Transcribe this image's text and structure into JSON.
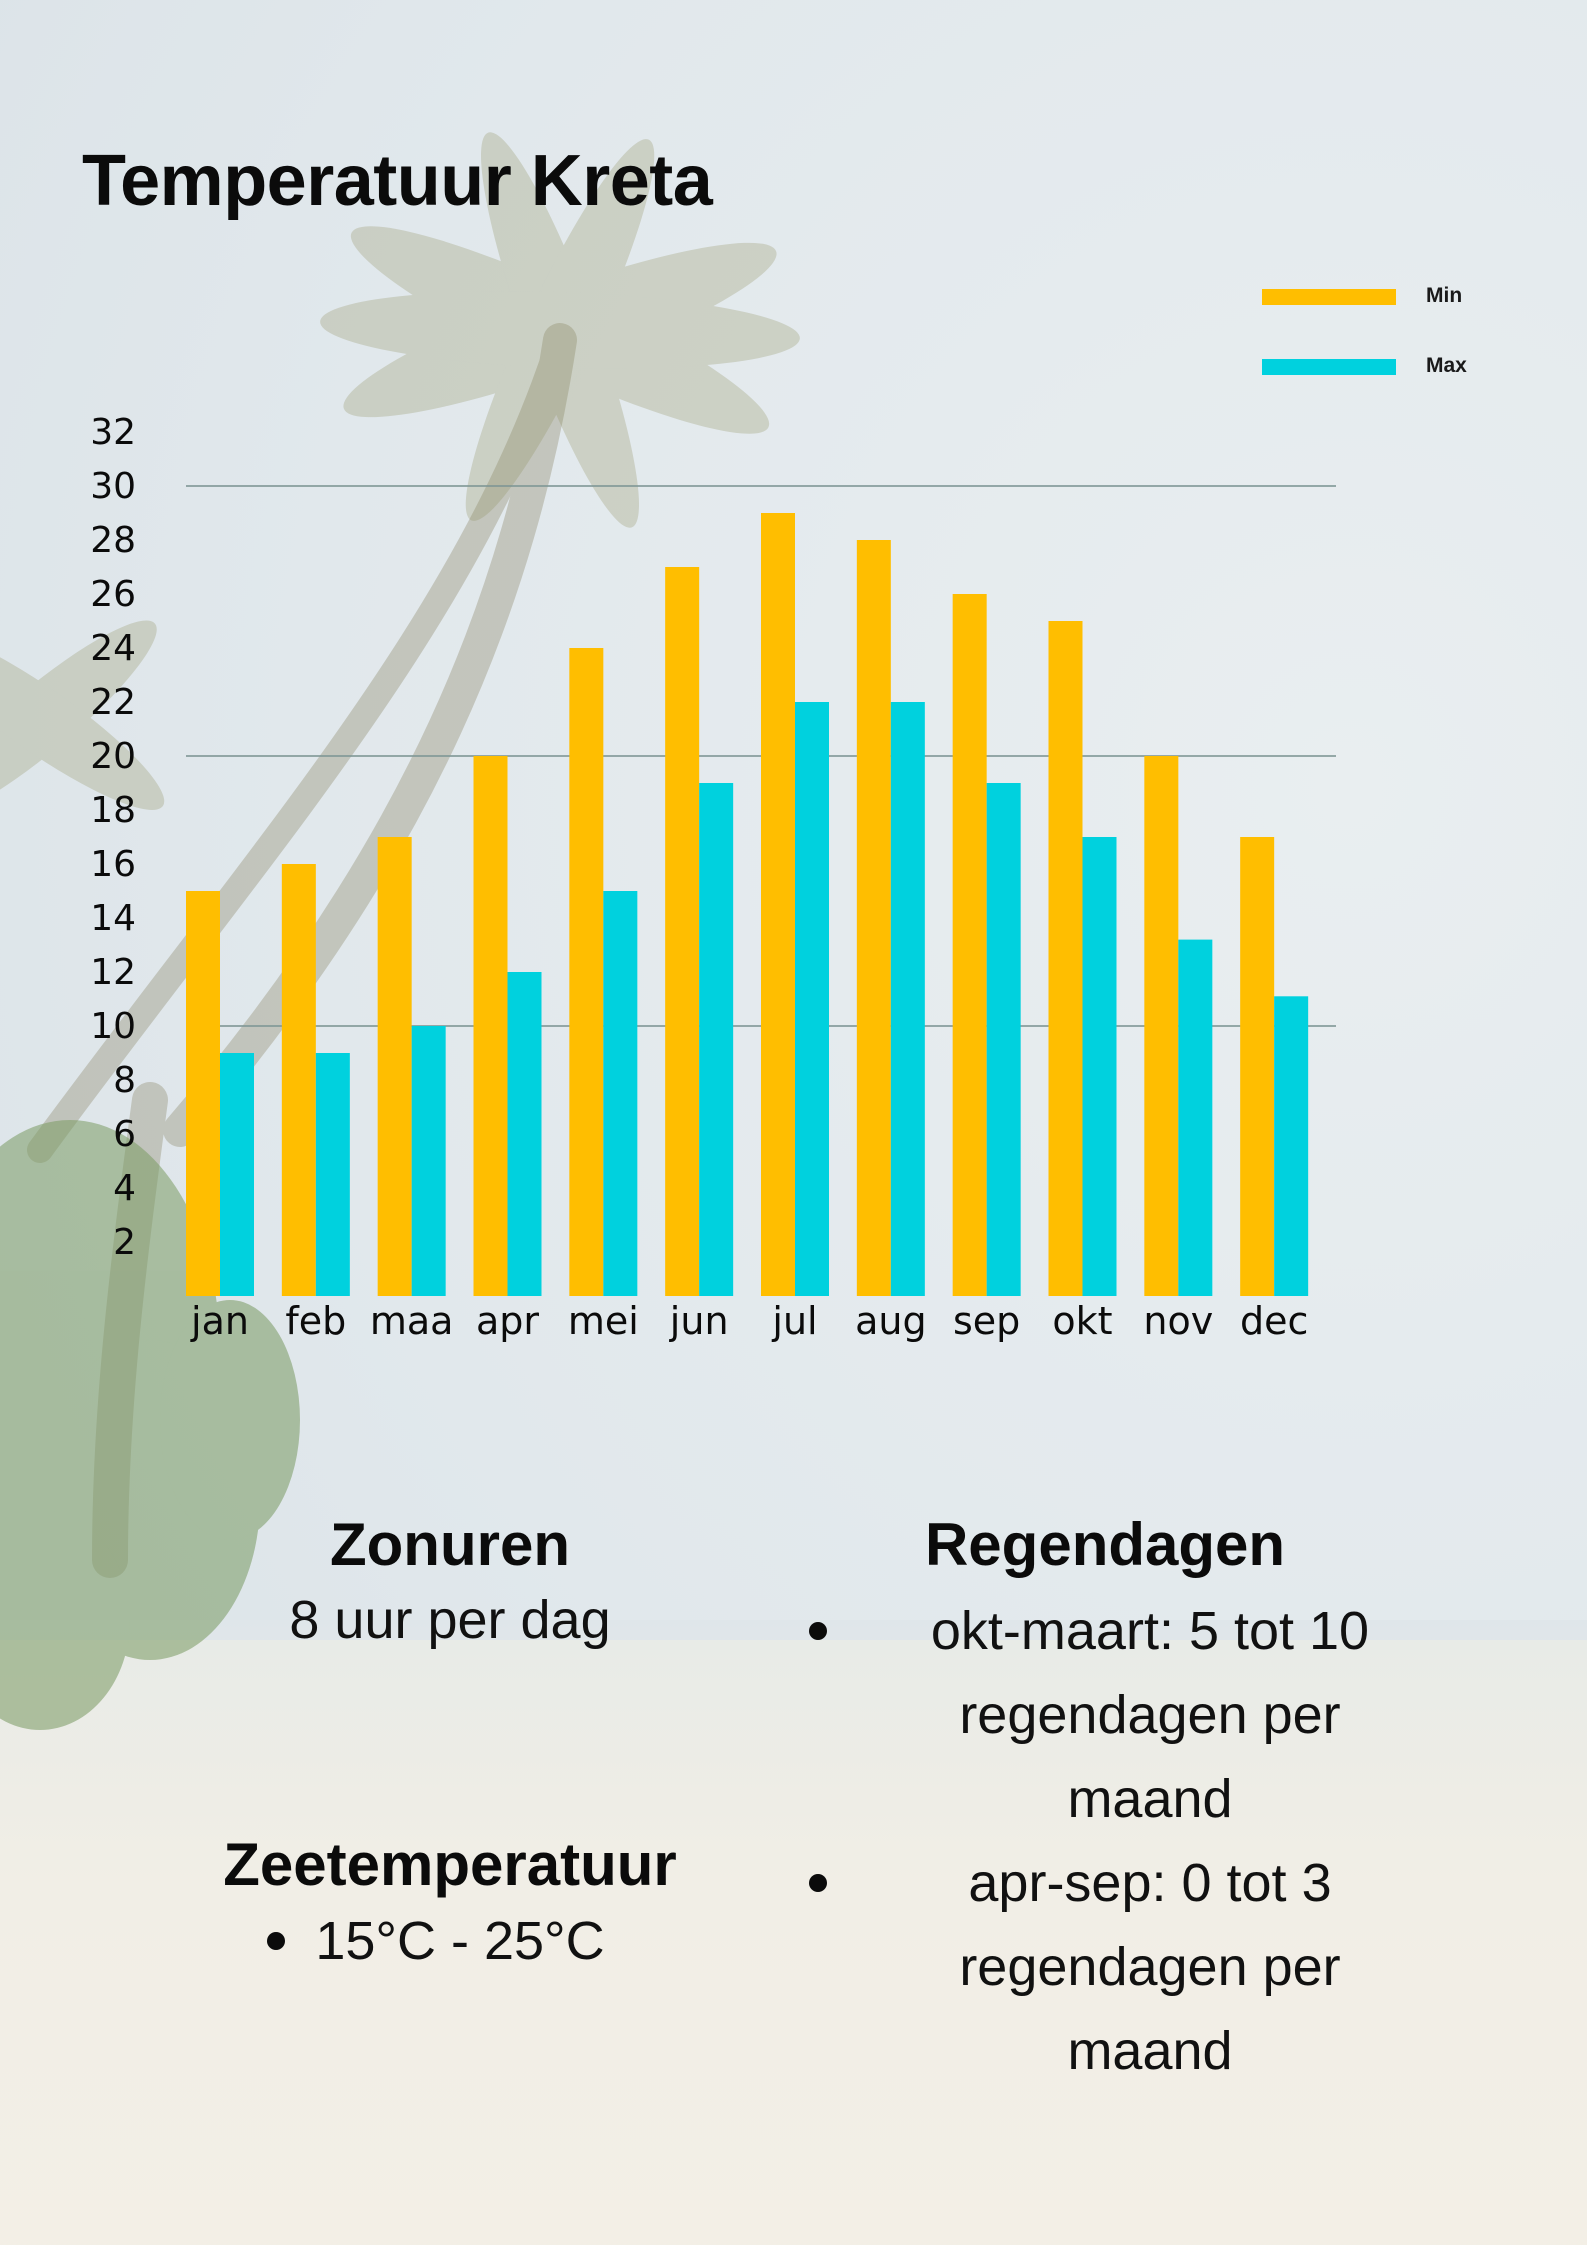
{
  "title": "Temperatuur Kreta",
  "colors": {
    "min": "#FFBE00",
    "max": "#00D1DE",
    "gridline": "#7F9795",
    "text": "#0B0B0B"
  },
  "legend": {
    "min_label": "Min",
    "max_label": "Max",
    "placement": "top-right"
  },
  "chart_data": {
    "type": "bar",
    "title": "Temperatuur Kreta",
    "xlabel": "",
    "ylabel": "",
    "categories": [
      "jan",
      "feb",
      "maa",
      "apr",
      "mei",
      "jun",
      "jul",
      "aug",
      "sep",
      "okt",
      "nov",
      "dec"
    ],
    "series": [
      {
        "name": "Min",
        "values": [
          15,
          16,
          17,
          20,
          24,
          27,
          29,
          28,
          26,
          25,
          20,
          17
        ]
      },
      {
        "name": "Max",
        "values": [
          9,
          9,
          10,
          12,
          15,
          19,
          22,
          22,
          19,
          17,
          13.2,
          11.1
        ]
      }
    ],
    "yticks": [
      "2",
      "4",
      "6",
      "8",
      "10",
      "12",
      "14",
      "16",
      "18",
      "20",
      "22",
      "24",
      "26",
      "28",
      "30",
      "32"
    ],
    "ylim": [
      0,
      32
    ],
    "gridlines": [
      10,
      20,
      30
    ],
    "legend_position": "top-right"
  },
  "zonuren": {
    "heading": "Zonuren",
    "text": "8 uur per dag"
  },
  "zeetemperatuur": {
    "heading": "Zeetemperatuur",
    "items": [
      "15°C - 25°C"
    ]
  },
  "regendagen": {
    "heading": "Regendagen",
    "items": [
      [
        "okt-maart: 5 tot 10",
        "regendagen per",
        "maand"
      ],
      [
        "apr-sep: 0 tot 3",
        "regendagen per",
        "maand"
      ]
    ]
  }
}
